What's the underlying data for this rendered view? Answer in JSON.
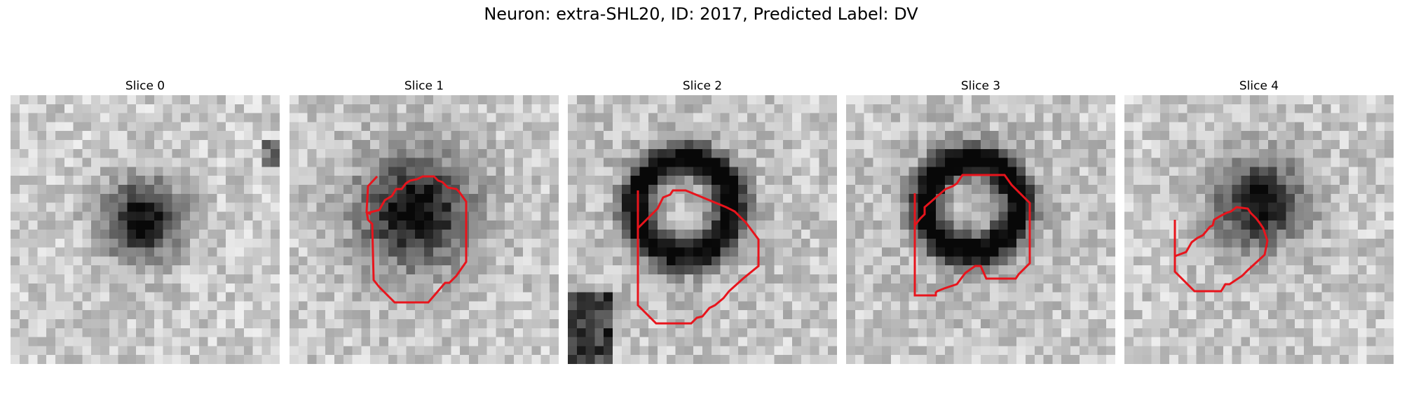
{
  "figure": {
    "title": "Neuron: extra-SHL20, ID: 2017, Predicted Label: DV"
  },
  "colors": {
    "contour": "#e8141c",
    "colormap": "gray"
  },
  "panels": [
    {
      "title": "Slice 0",
      "blob": "dark-soma-small",
      "has_contour": false
    },
    {
      "title": "Slice 1",
      "blob": "dark-soma-ring-filled",
      "has_contour": true
    },
    {
      "title": "Slice 2",
      "blob": "dark-ring-bright-center",
      "has_contour": true
    },
    {
      "title": "Slice 3",
      "blob": "dark-ring-bright-center",
      "has_contour": true
    },
    {
      "title": "Slice 4",
      "blob": "dark-soma-offset",
      "has_contour": true
    }
  ]
}
